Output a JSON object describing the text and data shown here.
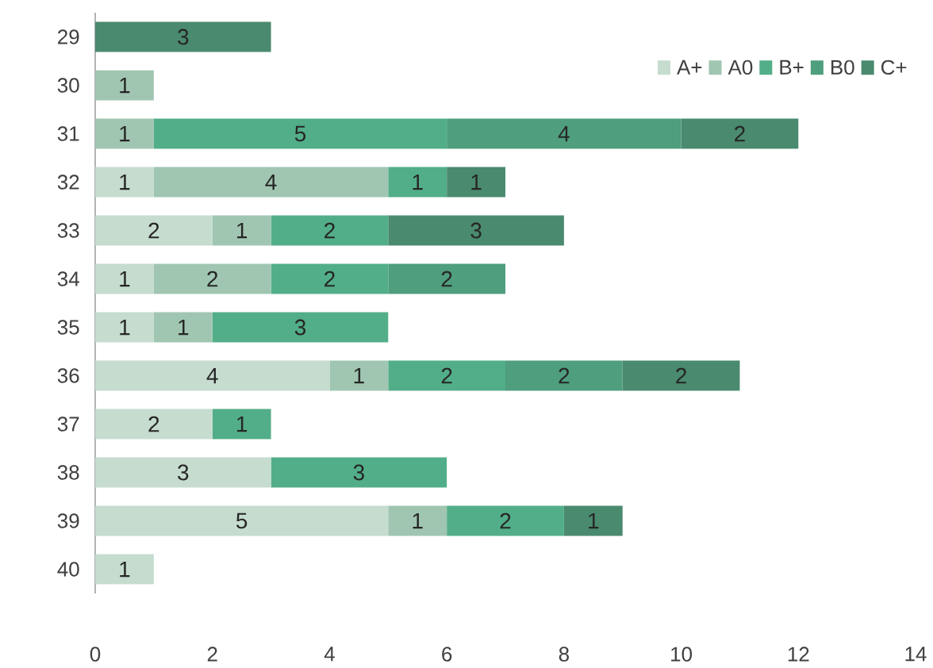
{
  "chart_data": {
    "type": "bar",
    "orientation": "horizontal",
    "stacked": true,
    "data_labels": true,
    "legend": "top right",
    "grid": false,
    "categories": [
      "29",
      "30",
      "31",
      "32",
      "33",
      "34",
      "35",
      "36",
      "37",
      "38",
      "39",
      "40"
    ],
    "series": [
      {
        "name": "A+",
        "color": "#c5dccf",
        "values": [
          null,
          null,
          null,
          1,
          2,
          1,
          1,
          4,
          2,
          3,
          5,
          1
        ]
      },
      {
        "name": "A0",
        "color": "#a0c6b1",
        "values": [
          null,
          1,
          1,
          4,
          1,
          2,
          1,
          1,
          null,
          null,
          1,
          null
        ]
      },
      {
        "name": "B+",
        "color": "#52ae88",
        "values": [
          null,
          null,
          5,
          1,
          2,
          2,
          3,
          2,
          1,
          3,
          2,
          null
        ]
      },
      {
        "name": "B0",
        "color": "#4f9e7e",
        "values": [
          null,
          null,
          4,
          null,
          null,
          2,
          null,
          2,
          null,
          null,
          null,
          null
        ]
      },
      {
        "name": "C+",
        "color": "#4a8a6f",
        "values": [
          3,
          null,
          2,
          1,
          3,
          null,
          null,
          2,
          null,
          null,
          1,
          null
        ]
      }
    ],
    "xlim": [
      0,
      14
    ],
    "xticks": [
      0,
      2,
      4,
      6,
      8,
      10,
      12,
      14
    ]
  }
}
